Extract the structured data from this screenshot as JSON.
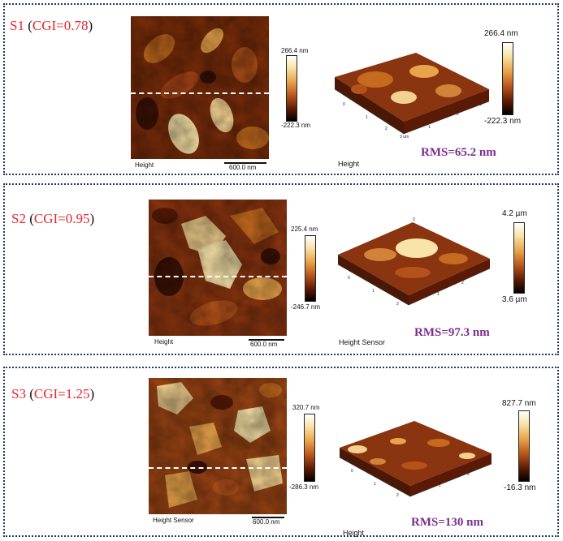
{
  "panels": [
    {
      "label_prefix": "S1",
      "label_open": " (",
      "label_cgi": "CGI=0.78",
      "label_close": ")",
      "height2d_caption": "Height",
      "scale_bar": "600.0 nm",
      "cbar2d_max": "266.4 nm",
      "cbar2d_min": "-222.3 nm",
      "caption3d": "Height",
      "cbar3d_max": "266.4 nm",
      "cbar3d_min": "-222.3 nm",
      "rms": "RMS=65.2 nm"
    },
    {
      "label_prefix": "S2",
      "label_open": " (",
      "label_cgi": "CGI=0.95",
      "label_close": ")",
      "height2d_caption": "Height",
      "scale_bar": "600.0 nm",
      "cbar2d_max": "225.4 nm",
      "cbar2d_min": "-246.7 nm",
      "caption3d": "Height Sensor",
      "cbar3d_max": "4.2 µm",
      "cbar3d_min": "3.6 µm",
      "rms": "RMS=97.3 nm"
    },
    {
      "label_prefix": "S3",
      "label_open": " (",
      "label_cgi": "CGI=1.25",
      "label_close": ")",
      "height2d_caption": "Height Sensor",
      "scale_bar": "600.0 nm",
      "cbar2d_max": "320.7 nm",
      "cbar2d_min": "-286.3 nm",
      "caption3d": "Height",
      "cbar3d_max": "827.7 nm",
      "cbar3d_min": "-16.3 nm",
      "rms": "RMS=130 nm"
    }
  ],
  "colors": {
    "border": "#1f3a5c",
    "label_red": "#e8262a",
    "rms_purple": "#7b2d8e"
  }
}
